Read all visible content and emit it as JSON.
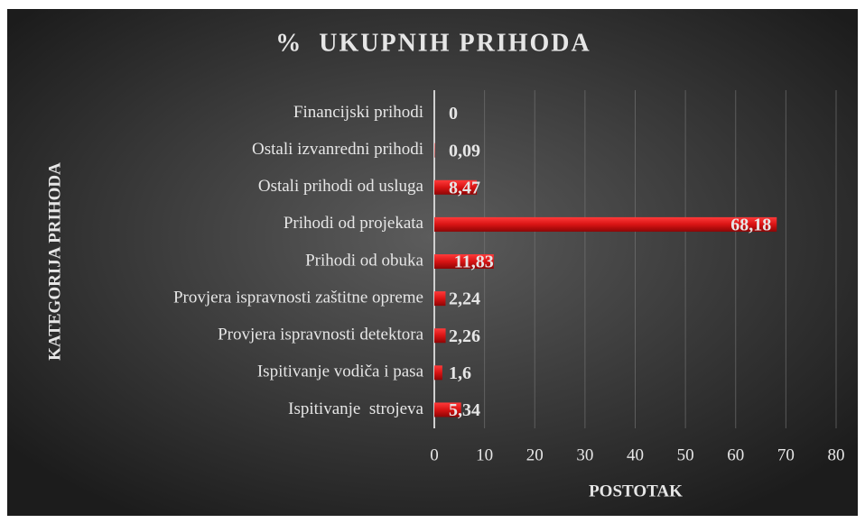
{
  "chart_data": {
    "type": "hbar",
    "title": "%  UKUPNIH PRIHODA",
    "xlabel": "POSTOTAK",
    "ylabel": "KATEGORIJA PRIHODA",
    "categories": [
      "Financijski prihodi",
      "Ostali izvanredni prihodi",
      "Ostali prihodi od usluga",
      "Prihodi od projekata",
      "Prihodi od obuka",
      "Provjera ispravnosti zaštitne opreme",
      "Provjera ispravnosti detektora",
      "Ispitivanje vodiča i pasa",
      "Ispitivanje  strojeva"
    ],
    "values": [
      0,
      0.09,
      8.47,
      68.18,
      11.83,
      2.24,
      2.26,
      1.6,
      5.34
    ],
    "value_labels": [
      "0",
      "0,09",
      "8,47",
      "68,18",
      "11,83",
      "2,24",
      "2,26",
      "1,6",
      "5,34"
    ],
    "color": "#d81414",
    "xlim": [
      0,
      80
    ],
    "xticks": [
      0,
      10,
      20,
      30,
      40,
      50,
      60,
      70,
      80
    ],
    "grid": true
  }
}
